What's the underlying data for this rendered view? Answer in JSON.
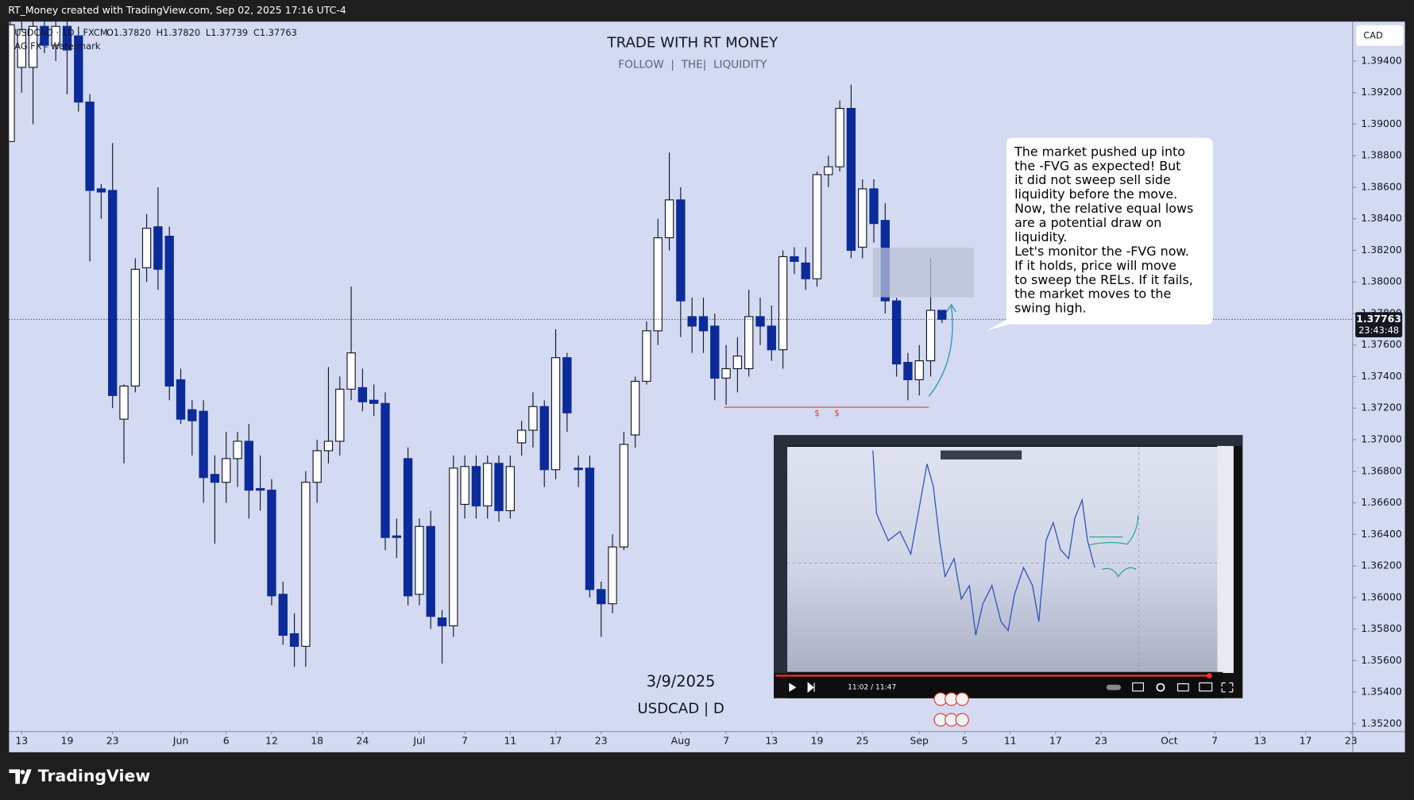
{
  "top_bar": "RT_Money created with TradingView.com, Sep 02, 2025 17:16 UTC-4",
  "legend": {
    "symbol": "USDCAD · 1D · FXCM",
    "ohlc": [
      "O1.37820",
      "H1.37820",
      "L1.37739",
      "C1.37763"
    ],
    "indicator": "AG FX - Watermark"
  },
  "watermark": {
    "title": "TRADE WITH RT MONEY",
    "subtitle": "FOLLOW  |  THE|  LIQUIDITY",
    "date": "3/9/2025",
    "symbol": "USDCAD | D"
  },
  "note": [
    "The market pushed up into",
    "the -FVG as expected!  But",
    "it did not sweep sell side",
    "liquidity before the move.",
    "Now, the relative equal lows",
    "are a potential draw on",
    "liquidity.",
    "Let's monitor the -FVG now.",
    "If it holds, price will move",
    "to sweep the RELs.  If it fails,",
    "the market moves to the",
    "swing high."
  ],
  "liquidity_marks": [
    "$",
    "$"
  ],
  "currency": "CAD",
  "countdown": "23:43:48",
  "video": {
    "time": "11:02 / 11:47"
  },
  "footer": "TradingView",
  "chart_data": {
    "type": "candlestick",
    "open": [
      1.3889,
      1.3936,
      1.3936,
      1.3962,
      1.395,
      1.3962,
      1.3956,
      1.3914,
      1.3859,
      1.3858,
      1.3713,
      1.3734,
      1.3809,
      1.3835,
      1.3829,
      1.3738,
      1.3719,
      1.3718,
      1.3678,
      1.3673,
      1.3688,
      1.3699,
      1.3669,
      1.3668,
      1.3602,
      1.3577,
      1.3569,
      1.3673,
      1.3693,
      1.3699,
      1.3732,
      1.3733,
      1.3725,
      1.3723,
      1.3639,
      1.3688,
      1.3602,
      1.3645,
      1.3587,
      1.3582,
      1.3659,
      1.3683,
      1.3658,
      1.3685,
      1.3655,
      1.3698,
      1.3706,
      1.3721,
      1.3681,
      1.3752,
      1.3682,
      1.3682,
      1.3605,
      1.3596,
      1.3632,
      1.3703,
      1.3737,
      1.3769,
      1.3828,
      1.3852,
      1.3778,
      1.3778,
      1.3772,
      1.3739,
      1.3745,
      1.3745,
      1.3778,
      1.3772,
      1.3757,
      1.3816,
      1.3812,
      1.3802,
      1.3868,
      1.3873,
      1.391,
      1.3822,
      1.3859,
      1.3839,
      1.3788,
      1.3749,
      1.3738,
      1.375,
      1.3782
    ],
    "high": [
      1.3966,
      1.3966,
      1.3966,
      1.3966,
      1.3966,
      1.3966,
      1.3962,
      1.3919,
      1.3862,
      1.3888,
      1.3735,
      1.3815,
      1.3843,
      1.386,
      1.3835,
      1.3745,
      1.3725,
      1.3725,
      1.369,
      1.3705,
      1.3705,
      1.371,
      1.369,
      1.3675,
      1.361,
      1.359,
      1.368,
      1.37,
      1.3746,
      1.374,
      1.3797,
      1.3745,
      1.3735,
      1.373,
      1.365,
      1.3695,
      1.365,
      1.3655,
      1.3592,
      1.369,
      1.369,
      1.369,
      1.369,
      1.369,
      1.369,
      1.3712,
      1.373,
      1.3725,
      1.377,
      1.3755,
      1.369,
      1.369,
      1.361,
      1.364,
      1.3705,
      1.374,
      1.3775,
      1.384,
      1.3882,
      1.386,
      1.379,
      1.379,
      1.378,
      1.376,
      1.3765,
      1.3795,
      1.379,
      1.3785,
      1.382,
      1.3822,
      1.3822,
      1.387,
      1.388,
      1.3915,
      1.3925,
      1.3865,
      1.3865,
      1.385,
      1.379,
      1.3755,
      1.376,
      1.3815,
      1.3782
    ],
    "low": [
      1.3889,
      1.392,
      1.39,
      1.3945,
      1.394,
      1.3919,
      1.3908,
      1.3813,
      1.384,
      1.372,
      1.3685,
      1.373,
      1.38,
      1.3795,
      1.3725,
      1.371,
      1.369,
      1.366,
      1.3634,
      1.366,
      1.367,
      1.365,
      1.3655,
      1.3595,
      1.357,
      1.3556,
      1.3556,
      1.366,
      1.3685,
      1.369,
      1.3725,
      1.3718,
      1.3715,
      1.363,
      1.3625,
      1.3595,
      1.3595,
      1.358,
      1.3558,
      1.3575,
      1.365,
      1.365,
      1.365,
      1.3648,
      1.365,
      1.369,
      1.3695,
      1.367,
      1.3675,
      1.3705,
      1.367,
      1.36,
      1.3575,
      1.359,
      1.363,
      1.3695,
      1.3735,
      1.376,
      1.382,
      1.3765,
      1.3755,
      1.3755,
      1.3725,
      1.3722,
      1.373,
      1.374,
      1.376,
      1.375,
      1.3745,
      1.3805,
      1.3795,
      1.3797,
      1.386,
      1.387,
      1.3815,
      1.3815,
      1.3825,
      1.378,
      1.374,
      1.3725,
      1.3728,
      1.374,
      1.37739
    ],
    "close": [
      1.3963,
      1.396,
      1.3962,
      1.395,
      1.3962,
      1.3947,
      1.3914,
      1.3858,
      1.3857,
      1.3728,
      1.3734,
      1.3808,
      1.3834,
      1.3808,
      1.3734,
      1.3713,
      1.3712,
      1.3676,
      1.3673,
      1.3688,
      1.3699,
      1.3668,
      1.3668,
      1.3601,
      1.3576,
      1.3569,
      1.3673,
      1.3693,
      1.3699,
      1.3732,
      1.3755,
      1.3724,
      1.3723,
      1.3638,
      1.3638,
      1.3601,
      1.3645,
      1.3588,
      1.3582,
      1.3682,
      1.3683,
      1.3658,
      1.3685,
      1.3655,
      1.3683,
      1.3706,
      1.3721,
      1.3681,
      1.3752,
      1.3717,
      1.3681,
      1.3605,
      1.3596,
      1.3632,
      1.3697,
      1.3737,
      1.3769,
      1.3828,
      1.3852,
      1.3788,
      1.3772,
      1.3769,
      1.3739,
      1.3745,
      1.3753,
      1.3778,
      1.3772,
      1.3757,
      1.3816,
      1.3813,
      1.3802,
      1.3868,
      1.3873,
      1.391,
      1.382,
      1.3859,
      1.3837,
      1.3788,
      1.3748,
      1.3738,
      1.375,
      1.3782,
      1.37763
    ],
    "up_color": "#ffffff",
    "down_color": "#0c2b9a",
    "wick_color": "#131722",
    "ylim": [
      1.3515,
      1.3965
    ],
    "yticks": [
      {
        "value": 1.352,
        "label": "1.35200"
      },
      {
        "value": 1.354,
        "label": "1.35400"
      },
      {
        "value": 1.356,
        "label": "1.35600"
      },
      {
        "value": 1.358,
        "label": "1.35800"
      },
      {
        "value": 1.36,
        "label": "1.36000"
      },
      {
        "value": 1.362,
        "label": "1.36200"
      },
      {
        "value": 1.364,
        "label": "1.36400"
      },
      {
        "value": 1.366,
        "label": "1.36600"
      },
      {
        "value": 1.368,
        "label": "1.36800"
      },
      {
        "value": 1.37,
        "label": "1.37000"
      },
      {
        "value": 1.372,
        "label": "1.37200"
      },
      {
        "value": 1.374,
        "label": "1.37400"
      },
      {
        "value": 1.376,
        "label": "1.37600"
      },
      {
        "value": 1.378,
        "label": "1.37800"
      },
      {
        "value": 1.38,
        "label": "1.38000"
      },
      {
        "value": 1.382,
        "label": "1.38200"
      },
      {
        "value": 1.384,
        "label": "1.38400"
      },
      {
        "value": 1.386,
        "label": "1.38600"
      },
      {
        "value": 1.388,
        "label": "1.38800"
      },
      {
        "value": 1.39,
        "label": "1.39000"
      },
      {
        "value": 1.392,
        "label": "1.39200"
      },
      {
        "value": 1.394,
        "label": "1.39400"
      }
    ],
    "xlim": [
      -0.11,
      118.14
    ],
    "xticks": [
      {
        "value": 1,
        "label": "13"
      },
      {
        "value": 5,
        "label": "19"
      },
      {
        "value": 9,
        "label": "23"
      },
      {
        "value": 15,
        "label": "Jun"
      },
      {
        "value": 19,
        "label": "6"
      },
      {
        "value": 23,
        "label": "12"
      },
      {
        "value": 27,
        "label": "18"
      },
      {
        "value": 31,
        "label": "24"
      },
      {
        "value": 36,
        "label": "Jul"
      },
      {
        "value": 40,
        "label": "7"
      },
      {
        "value": 44,
        "label": "11"
      },
      {
        "value": 48,
        "label": "17"
      },
      {
        "value": 52,
        "label": "23"
      },
      {
        "value": 59,
        "label": "Aug"
      },
      {
        "value": 63,
        "label": "7"
      },
      {
        "value": 67,
        "label": "13"
      },
      {
        "value": 71,
        "label": "19"
      },
      {
        "value": 75,
        "label": "25"
      },
      {
        "value": 80,
        "label": "Sep"
      },
      {
        "value": 84,
        "label": "5"
      },
      {
        "value": 88,
        "label": "11"
      },
      {
        "value": 92,
        "label": "17"
      },
      {
        "value": 96,
        "label": "23"
      },
      {
        "value": 102,
        "label": "Oct"
      },
      {
        "value": 106,
        "label": "7"
      },
      {
        "value": 110,
        "label": "13"
      },
      {
        "value": 114,
        "label": "17"
      },
      {
        "value": 118,
        "label": "23"
      }
    ],
    "grid": false
  }
}
